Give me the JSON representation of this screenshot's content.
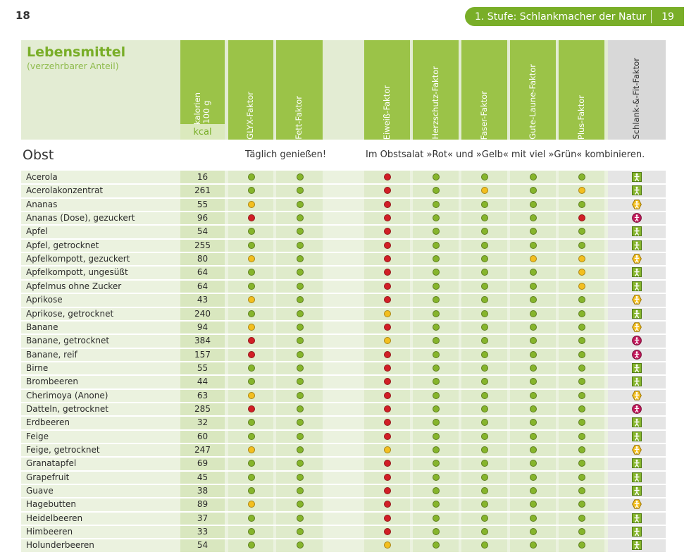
{
  "page": {
    "left_number": "18",
    "header_title": "1. Stufe: Schlankmacher der Natur",
    "right_number": "19"
  },
  "table_header": {
    "food_title": "Lebensmittel",
    "food_subtitle": "(verzehrbarer Anteil)",
    "kcal_title": "Kilokalorien\npro 100 g",
    "kcal_unit": "kcal",
    "columns": [
      "GLYX-Faktor",
      "Fett-Faktor",
      "Eiweiß-Faktor",
      "Herzschutz-Faktor",
      "Faser-Faktor",
      "Gute-Laune-Faktor",
      "Plus-Faktor"
    ],
    "summary_column": "Schlank-&-Fit-Faktor"
  },
  "section": {
    "title": "Obst",
    "note_1": "Täglich genießen!",
    "note_2": "Im Obstsalat »Rot« und »Gelb« mit viel »Grün« kombinieren."
  },
  "colors": {
    "green": "#86b52c",
    "yellow": "#f3bf1f",
    "red": "#d21f26"
  },
  "rows": [
    {
      "name": "Acerola",
      "kcal": "16",
      "f": [
        "g",
        "g",
        "r",
        "g",
        "g",
        "g",
        "g"
      ],
      "icon": "green-figure-icon"
    },
    {
      "name": "Acerolakonzentrat",
      "kcal": "261",
      "f": [
        "g",
        "g",
        "r",
        "g",
        "y",
        "g",
        "y"
      ],
      "icon": "green-figure-icon"
    },
    {
      "name": "Ananas",
      "kcal": "55",
      "f": [
        "y",
        "g",
        "r",
        "g",
        "g",
        "g",
        "g"
      ],
      "icon": "yellow-figure-icon"
    },
    {
      "name": "Ananas (Dose), gezuckert",
      "kcal": "96",
      "f": [
        "r",
        "g",
        "r",
        "g",
        "g",
        "g",
        "r"
      ],
      "icon": "red-figure-icon"
    },
    {
      "name": "Apfel",
      "kcal": "54",
      "f": [
        "g",
        "g",
        "r",
        "g",
        "g",
        "g",
        "g"
      ],
      "icon": "green-figure-icon"
    },
    {
      "name": "Apfel, getrocknet",
      "kcal": "255",
      "f": [
        "g",
        "g",
        "r",
        "g",
        "g",
        "g",
        "g"
      ],
      "icon": "green-figure-icon"
    },
    {
      "name": "Apfelkompott, gezuckert",
      "kcal": "80",
      "f": [
        "y",
        "g",
        "r",
        "g",
        "g",
        "y",
        "y"
      ],
      "icon": "yellow-figure-icon"
    },
    {
      "name": "Apfelkompott, ungesüßt",
      "kcal": "64",
      "f": [
        "g",
        "g",
        "r",
        "g",
        "g",
        "g",
        "y"
      ],
      "icon": "green-figure-icon"
    },
    {
      "name": "Apfelmus ohne Zucker",
      "kcal": "64",
      "f": [
        "g",
        "g",
        "r",
        "g",
        "g",
        "g",
        "y"
      ],
      "icon": "green-figure-icon"
    },
    {
      "name": "Aprikose",
      "kcal": "43",
      "f": [
        "y",
        "g",
        "r",
        "g",
        "g",
        "g",
        "g"
      ],
      "icon": "yellow-figure-icon"
    },
    {
      "name": "Aprikose, getrocknet",
      "kcal": "240",
      "f": [
        "g",
        "g",
        "y",
        "g",
        "g",
        "g",
        "g"
      ],
      "icon": "green-figure-icon"
    },
    {
      "name": "Banane",
      "kcal": "94",
      "f": [
        "y",
        "g",
        "r",
        "g",
        "g",
        "g",
        "g"
      ],
      "icon": "yellow-figure-icon"
    },
    {
      "name": "Banane, getrocknet",
      "kcal": "384",
      "f": [
        "r",
        "g",
        "y",
        "g",
        "g",
        "g",
        "g"
      ],
      "icon": "red-figure-icon"
    },
    {
      "name": "Banane, reif",
      "kcal": "157",
      "f": [
        "r",
        "g",
        "r",
        "g",
        "g",
        "g",
        "g"
      ],
      "icon": "red-figure-icon"
    },
    {
      "name": "Birne",
      "kcal": "55",
      "f": [
        "g",
        "g",
        "r",
        "g",
        "g",
        "g",
        "g"
      ],
      "icon": "green-figure-icon"
    },
    {
      "name": "Brombeeren",
      "kcal": "44",
      "f": [
        "g",
        "g",
        "r",
        "g",
        "g",
        "g",
        "g"
      ],
      "icon": "green-figure-icon"
    },
    {
      "name": "Cherimoya (Anone)",
      "kcal": "63",
      "f": [
        "y",
        "g",
        "r",
        "g",
        "g",
        "g",
        "g"
      ],
      "icon": "yellow-figure-icon"
    },
    {
      "name": "Datteln, getrocknet",
      "kcal": "285",
      "f": [
        "r",
        "g",
        "r",
        "g",
        "g",
        "g",
        "g"
      ],
      "icon": "red-figure-icon"
    },
    {
      "name": "Erdbeeren",
      "kcal": "32",
      "f": [
        "g",
        "g",
        "r",
        "g",
        "g",
        "g",
        "g"
      ],
      "icon": "green-figure-icon"
    },
    {
      "name": "Feige",
      "kcal": "60",
      "f": [
        "g",
        "g",
        "r",
        "g",
        "g",
        "g",
        "g"
      ],
      "icon": "green-figure-icon"
    },
    {
      "name": "Feige, getrocknet",
      "kcal": "247",
      "f": [
        "y",
        "g",
        "y",
        "g",
        "g",
        "g",
        "g"
      ],
      "icon": "yellow-figure-icon"
    },
    {
      "name": "Granatapfel",
      "kcal": "69",
      "f": [
        "g",
        "g",
        "r",
        "g",
        "g",
        "g",
        "g"
      ],
      "icon": "green-figure-icon"
    },
    {
      "name": "Grapefruit",
      "kcal": "45",
      "f": [
        "g",
        "g",
        "r",
        "g",
        "g",
        "g",
        "g"
      ],
      "icon": "green-figure-icon"
    },
    {
      "name": "Guave",
      "kcal": "38",
      "f": [
        "g",
        "g",
        "r",
        "g",
        "g",
        "g",
        "g"
      ],
      "icon": "green-figure-icon"
    },
    {
      "name": "Hagebutten",
      "kcal": "89",
      "f": [
        "y",
        "g",
        "r",
        "g",
        "g",
        "g",
        "g"
      ],
      "icon": "yellow-figure-icon"
    },
    {
      "name": "Heidelbeeren",
      "kcal": "37",
      "f": [
        "g",
        "g",
        "r",
        "g",
        "g",
        "g",
        "g"
      ],
      "icon": "green-figure-icon"
    },
    {
      "name": "Himbeeren",
      "kcal": "33",
      "f": [
        "g",
        "g",
        "r",
        "g",
        "g",
        "g",
        "g"
      ],
      "icon": "green-figure-icon"
    },
    {
      "name": "Holunderbeeren",
      "kcal": "54",
      "f": [
        "g",
        "g",
        "y",
        "g",
        "g",
        "g",
        "g"
      ],
      "icon": "green-figure-icon"
    }
  ]
}
